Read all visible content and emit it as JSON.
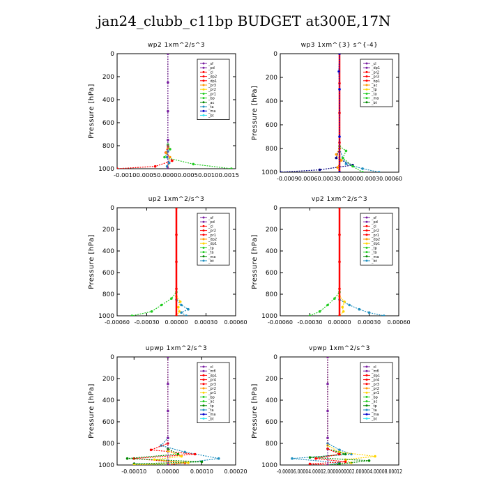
{
  "page": {
    "title": "jan24_clubb_c11bp  BUDGET at300E,17N"
  },
  "palette": {
    "red": "#ff0000",
    "dark_red": "#cc0000",
    "purple": "#7a1fa2",
    "orange": "#ff9900",
    "yellow": "#ffd400",
    "green": "#22cc22",
    "dark_green": "#008800",
    "light_green": "#66ff66",
    "blue": "#0000cc",
    "teal": "#1f8fbf",
    "cyan": "#33e5f0",
    "navy": "#000080",
    "black": "#000000"
  },
  "chart_data": [
    {
      "id": "wp2",
      "type": "line",
      "title": "wp2   1xm^2/s^3",
      "ylabel": "Pressure  [hPa]",
      "ylim": [
        1000,
        0
      ],
      "xlim": [
        -0.0012,
        0.0016
      ],
      "y_ticks": [
        0,
        200,
        400,
        600,
        800,
        1000
      ],
      "x_tick_labels": [
        "-0.00100.00050.00000.00050.00100.0015"
      ],
      "legend_position": "top-right",
      "legend": [
        "_sf",
        "_pd",
        "_cl",
        "_dp2",
        "_dp1",
        "_pr3",
        "_pr2",
        "_pr1",
        "_bp",
        "_ac",
        "_ta",
        "_ma",
        "_bt"
      ],
      "series": [
        {
          "name": "_dp1",
          "color_key": "red",
          "x": [
            0,
            0,
            -5e-05,
            0.0001,
            -0.0003,
            -0.0012
          ],
          "y": [
            0,
            800,
            860,
            930,
            980,
            1000
          ]
        },
        {
          "name": "_pr1",
          "color_key": "green",
          "x": [
            0,
            0,
            5e-05,
            -8e-05,
            0.0006,
            0.0015
          ],
          "y": [
            0,
            790,
            830,
            900,
            960,
            1000
          ]
        },
        {
          "name": "_pr2",
          "color_key": "orange",
          "x": [
            0,
            0,
            -4e-05,
            5e-05,
            2e-05,
            0
          ],
          "y": [
            0,
            820,
            860,
            900,
            950,
            1000
          ]
        },
        {
          "name": "_ac",
          "color_key": "teal",
          "x": [
            0,
            0,
            -2e-05,
            3e-05,
            -2e-05,
            0
          ],
          "y": [
            0,
            850,
            900,
            950,
            980,
            1000
          ]
        },
        {
          "name": "_bt",
          "color_key": "purple",
          "x": [
            0,
            0,
            0,
            0,
            0
          ],
          "y": [
            0,
            250,
            500,
            750,
            1000
          ]
        }
      ]
    },
    {
      "id": "wp3",
      "type": "line",
      "title": "wp3   1xm^{3} s^{-4}",
      "ylabel": "Pressure  [hPa]",
      "ylim": [
        1000,
        0
      ],
      "xlim": [
        -0.0009,
        0.0009
      ],
      "y_ticks": [
        0,
        200,
        400,
        600,
        800,
        1000
      ],
      "x_tick_labels": [
        "-0.00090.00060.00030.000000.00030.00060"
      ],
      "legend_position": "top-right",
      "legend": [
        "_cl",
        "_dp1",
        "_pr2",
        "_pr3",
        "_bp1",
        "_ac",
        "_tp",
        "_ta",
        "_ma",
        "_bt"
      ],
      "series": [
        {
          "name": "_tp",
          "color_key": "navy",
          "x": [
            0,
            0,
            -5e-05,
            0.0002,
            -0.0003,
            -0.0009
          ],
          "y": [
            0,
            800,
            880,
            940,
            980,
            1000
          ]
        },
        {
          "name": "_ta",
          "color_key": "teal",
          "x": [
            0,
            0,
            5e-05,
            0.0001,
            0.00035,
            0.0006
          ],
          "y": [
            0,
            800,
            880,
            930,
            970,
            1000
          ]
        },
        {
          "name": "_ac",
          "color_key": "green",
          "x": [
            0,
            0,
            0.0001,
            5e-05,
            0.0002,
            0.00035
          ],
          "y": [
            0,
            780,
            820,
            880,
            950,
            1000
          ]
        },
        {
          "name": "_pr2",
          "color_key": "orange",
          "x": [
            0,
            0,
            -5e-05,
            3e-05,
            -3e-05,
            0
          ],
          "y": [
            0,
            800,
            850,
            900,
            960,
            1000
          ]
        },
        {
          "name": "_bt",
          "color_key": "red",
          "x": [
            0,
            0,
            0,
            0,
            0
          ],
          "y": [
            0,
            250,
            500,
            750,
            1000
          ]
        },
        {
          "name": "_dp1",
          "color_key": "blue",
          "x": [
            0,
            -1e-05,
            0,
            0,
            0
          ],
          "y": [
            0,
            150,
            300,
            700,
            1000
          ]
        }
      ]
    },
    {
      "id": "up2",
      "type": "line",
      "title": "up2   1xm^2/s^3",
      "ylabel": "Pressure  [hPa]",
      "ylim": [
        1000,
        0
      ],
      "xlim": [
        -0.0006,
        0.0006
      ],
      "y_ticks": [
        0,
        200,
        400,
        600,
        800,
        1000
      ],
      "x_tick_labels": [
        "-0.00060",
        "-0.00030",
        "0.00000",
        "0.00030",
        "0.00060"
      ],
      "x_tick_values": [
        -0.0006,
        -0.0003,
        0,
        0.0003,
        0.0006
      ],
      "legend_position": "top-right",
      "legend": [
        "_sf",
        "_pd",
        "_cl",
        "_pr2",
        "_pr1",
        "_dp2",
        "_dp1",
        "_tp",
        "_ta",
        "_ma",
        "_bt"
      ],
      "series": [
        {
          "name": "_pr1",
          "color_key": "green",
          "x": [
            0,
            0,
            -5e-05,
            -0.00015,
            -0.00025,
            -0.00045
          ],
          "y": [
            0,
            780,
            840,
            900,
            960,
            1000
          ]
        },
        {
          "name": "_tp",
          "color_key": "teal",
          "x": [
            0,
            0,
            5e-05,
            0.00012,
            5e-05,
            0.0001
          ],
          "y": [
            0,
            850,
            900,
            940,
            970,
            1000
          ]
        },
        {
          "name": "_pr2",
          "color_key": "yellow",
          "x": [
            0,
            0,
            4e-05,
            2e-05,
            3e-05,
            0
          ],
          "y": [
            0,
            820,
            870,
            920,
            960,
            1000
          ]
        },
        {
          "name": "_bt",
          "color_key": "red",
          "x": [
            0,
            0,
            0,
            0,
            0
          ],
          "y": [
            0,
            250,
            500,
            750,
            1000
          ]
        }
      ]
    },
    {
      "id": "vp2",
      "type": "line",
      "title": "vp2   1xm^2/s^3",
      "ylabel": "Pressure  [hPa]",
      "ylim": [
        1000,
        0
      ],
      "xlim": [
        -0.0006,
        0.0006
      ],
      "y_ticks": [
        0,
        200,
        400,
        600,
        800,
        1000
      ],
      "x_tick_labels": [
        "-0.00060",
        "-0.00030",
        "0.00000",
        "0.00030",
        "0.00060"
      ],
      "x_tick_values": [
        -0.0006,
        -0.0003,
        0,
        0.0003,
        0.0006
      ],
      "legend_position": "top-right",
      "legend": [
        "_sf",
        "_pd",
        "_cl",
        "_pr2",
        "_pr1",
        "_dp2",
        "_dp1",
        "_tp",
        "_ta",
        "_ma",
        "_bt"
      ],
      "series": [
        {
          "name": "_pr1",
          "color_key": "green",
          "x": [
            0,
            0,
            -5e-05,
            -0.00012,
            -0.0002,
            -0.0003
          ],
          "y": [
            0,
            780,
            840,
            900,
            960,
            1000
          ]
        },
        {
          "name": "_tp",
          "color_key": "teal",
          "x": [
            0,
            0,
            0.0001,
            0.0002,
            0.0003,
            0.00045
          ],
          "y": [
            0,
            850,
            900,
            940,
            970,
            1000
          ]
        },
        {
          "name": "_pr2",
          "color_key": "yellow",
          "x": [
            0,
            0,
            5e-05,
            3e-05,
            4e-05,
            0
          ],
          "y": [
            0,
            820,
            870,
            920,
            960,
            1000
          ]
        },
        {
          "name": "_bt",
          "color_key": "red",
          "x": [
            0,
            0,
            0,
            0,
            0
          ],
          "y": [
            0,
            250,
            500,
            750,
            1000
          ]
        }
      ]
    },
    {
      "id": "upwp",
      "type": "line",
      "title": "upwp   1xm^2/s^3",
      "ylabel": "Pressure  [hPa]",
      "ylim": [
        1000,
        0
      ],
      "xlim": [
        -0.00015,
        0.0002
      ],
      "y_ticks": [
        0,
        200,
        400,
        600,
        800,
        1000
      ],
      "x_tick_labels": [
        "-0.00010",
        "0.00000",
        "0.00010",
        "0.00020"
      ],
      "x_tick_values": [
        -0.0001,
        0,
        0.0001,
        0.0002
      ],
      "legend_position": "top-right",
      "legend": [
        "_cl",
        "_mfl",
        "_dp1",
        "_pr4",
        "_pr3",
        "_pr2",
        "_pr1",
        "_bp",
        "_ac",
        "_tp",
        "_ta",
        "_ma",
        "_bt"
      ],
      "series": [
        {
          "name": "_ta",
          "color_key": "teal",
          "x": [
            0,
            0,
            -2e-05,
            5e-05,
            0.00015,
            5e-05,
            0
          ],
          "y": [
            0,
            750,
            820,
            880,
            940,
            980,
            1000
          ]
        },
        {
          "name": "_pr1",
          "color_key": "red",
          "x": [
            0,
            0,
            -5e-05,
            8e-05,
            -0.0001,
            5e-05,
            0
          ],
          "y": [
            0,
            800,
            860,
            900,
            940,
            980,
            1000
          ]
        },
        {
          "name": "_bp",
          "color_key": "dark_green",
          "x": [
            0,
            0,
            3e-05,
            -0.00012,
            0.0001,
            -0.0001,
            0
          ],
          "y": [
            0,
            850,
            900,
            940,
            970,
            990,
            1000
          ]
        },
        {
          "name": "_ac",
          "color_key": "yellow",
          "x": [
            0,
            0,
            4e-05,
            -4e-05,
            6e-05,
            -0.0001
          ],
          "y": [
            0,
            870,
            920,
            950,
            980,
            1000
          ]
        },
        {
          "name": "_bt",
          "color_key": "purple",
          "x": [
            0,
            0,
            0,
            0,
            0
          ],
          "y": [
            0,
            250,
            500,
            750,
            1000
          ]
        }
      ]
    },
    {
      "id": "vpwp",
      "type": "line",
      "title": "vpwp   1xm^2/s^3",
      "ylabel": "Pressure  [hPa]",
      "ylim": [
        1000,
        0
      ],
      "xlim": [
        -8e-05,
        0.00012
      ],
      "y_ticks": [
        0,
        200,
        400,
        600,
        800,
        1000
      ],
      "x_tick_labels": [
        "-0.00006.00004.00002.0000000002.000004.00008.00012"
      ],
      "legend_position": "top-right",
      "legend": [
        "_cl",
        "_mfl",
        "_dp1",
        "_pr4",
        "_pr3",
        "_pr2",
        "_pr1",
        "_bp",
        "_ac",
        "_tp",
        "_ta",
        "_ma",
        "_bt"
      ],
      "series": [
        {
          "name": "_ta",
          "color_key": "teal",
          "x": [
            0,
            0,
            2e-05,
            4e-05,
            -6e-05,
            2e-05,
            0
          ],
          "y": [
            0,
            800,
            860,
            900,
            940,
            980,
            1000
          ]
        },
        {
          "name": "_ac",
          "color_key": "yellow",
          "x": [
            0,
            0,
            2e-05,
            8e-05,
            3e-05,
            4e-05,
            0
          ],
          "y": [
            0,
            820,
            880,
            920,
            950,
            980,
            1000
          ]
        },
        {
          "name": "_bp",
          "color_key": "dark_green",
          "x": [
            0,
            0,
            3e-05,
            -3e-05,
            7e-05,
            2e-05,
            0
          ],
          "y": [
            0,
            850,
            900,
            930,
            960,
            990,
            1000
          ]
        },
        {
          "name": "_pr1",
          "color_key": "red",
          "x": [
            0,
            0,
            2e-05,
            -2e-05,
            3e-05,
            -3e-05,
            0
          ],
          "y": [
            0,
            850,
            900,
            940,
            970,
            990,
            1000
          ]
        },
        {
          "name": "_bt",
          "color_key": "purple",
          "x": [
            0,
            0,
            0,
            0,
            0
          ],
          "y": [
            0,
            250,
            500,
            750,
            1000
          ]
        }
      ]
    }
  ]
}
